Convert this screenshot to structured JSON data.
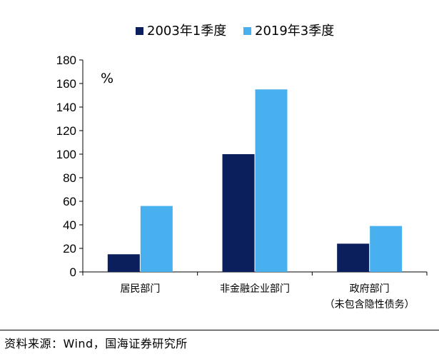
{
  "chart_data": {
    "type": "bar",
    "unit_label": "%",
    "categories": [
      {
        "lines": [
          "居民部门"
        ]
      },
      {
        "lines": [
          "非金融企业部门"
        ]
      },
      {
        "lines": [
          "政府部门",
          "（未包含隐性债务）"
        ]
      }
    ],
    "series": [
      {
        "name": "2003年1季度",
        "color": "#0b1f5c",
        "values": [
          15,
          100,
          24
        ]
      },
      {
        "name": "2019年3季度",
        "color": "#48b0ef",
        "values": [
          56,
          155,
          39
        ]
      }
    ],
    "yticks": [
      0,
      20,
      40,
      60,
      80,
      100,
      120,
      140,
      160,
      180
    ],
    "ylim": [
      0,
      180
    ],
    "grid": false,
    "legend_position": "top-center"
  },
  "source": "资料来源：Wind，国海证券研究所"
}
